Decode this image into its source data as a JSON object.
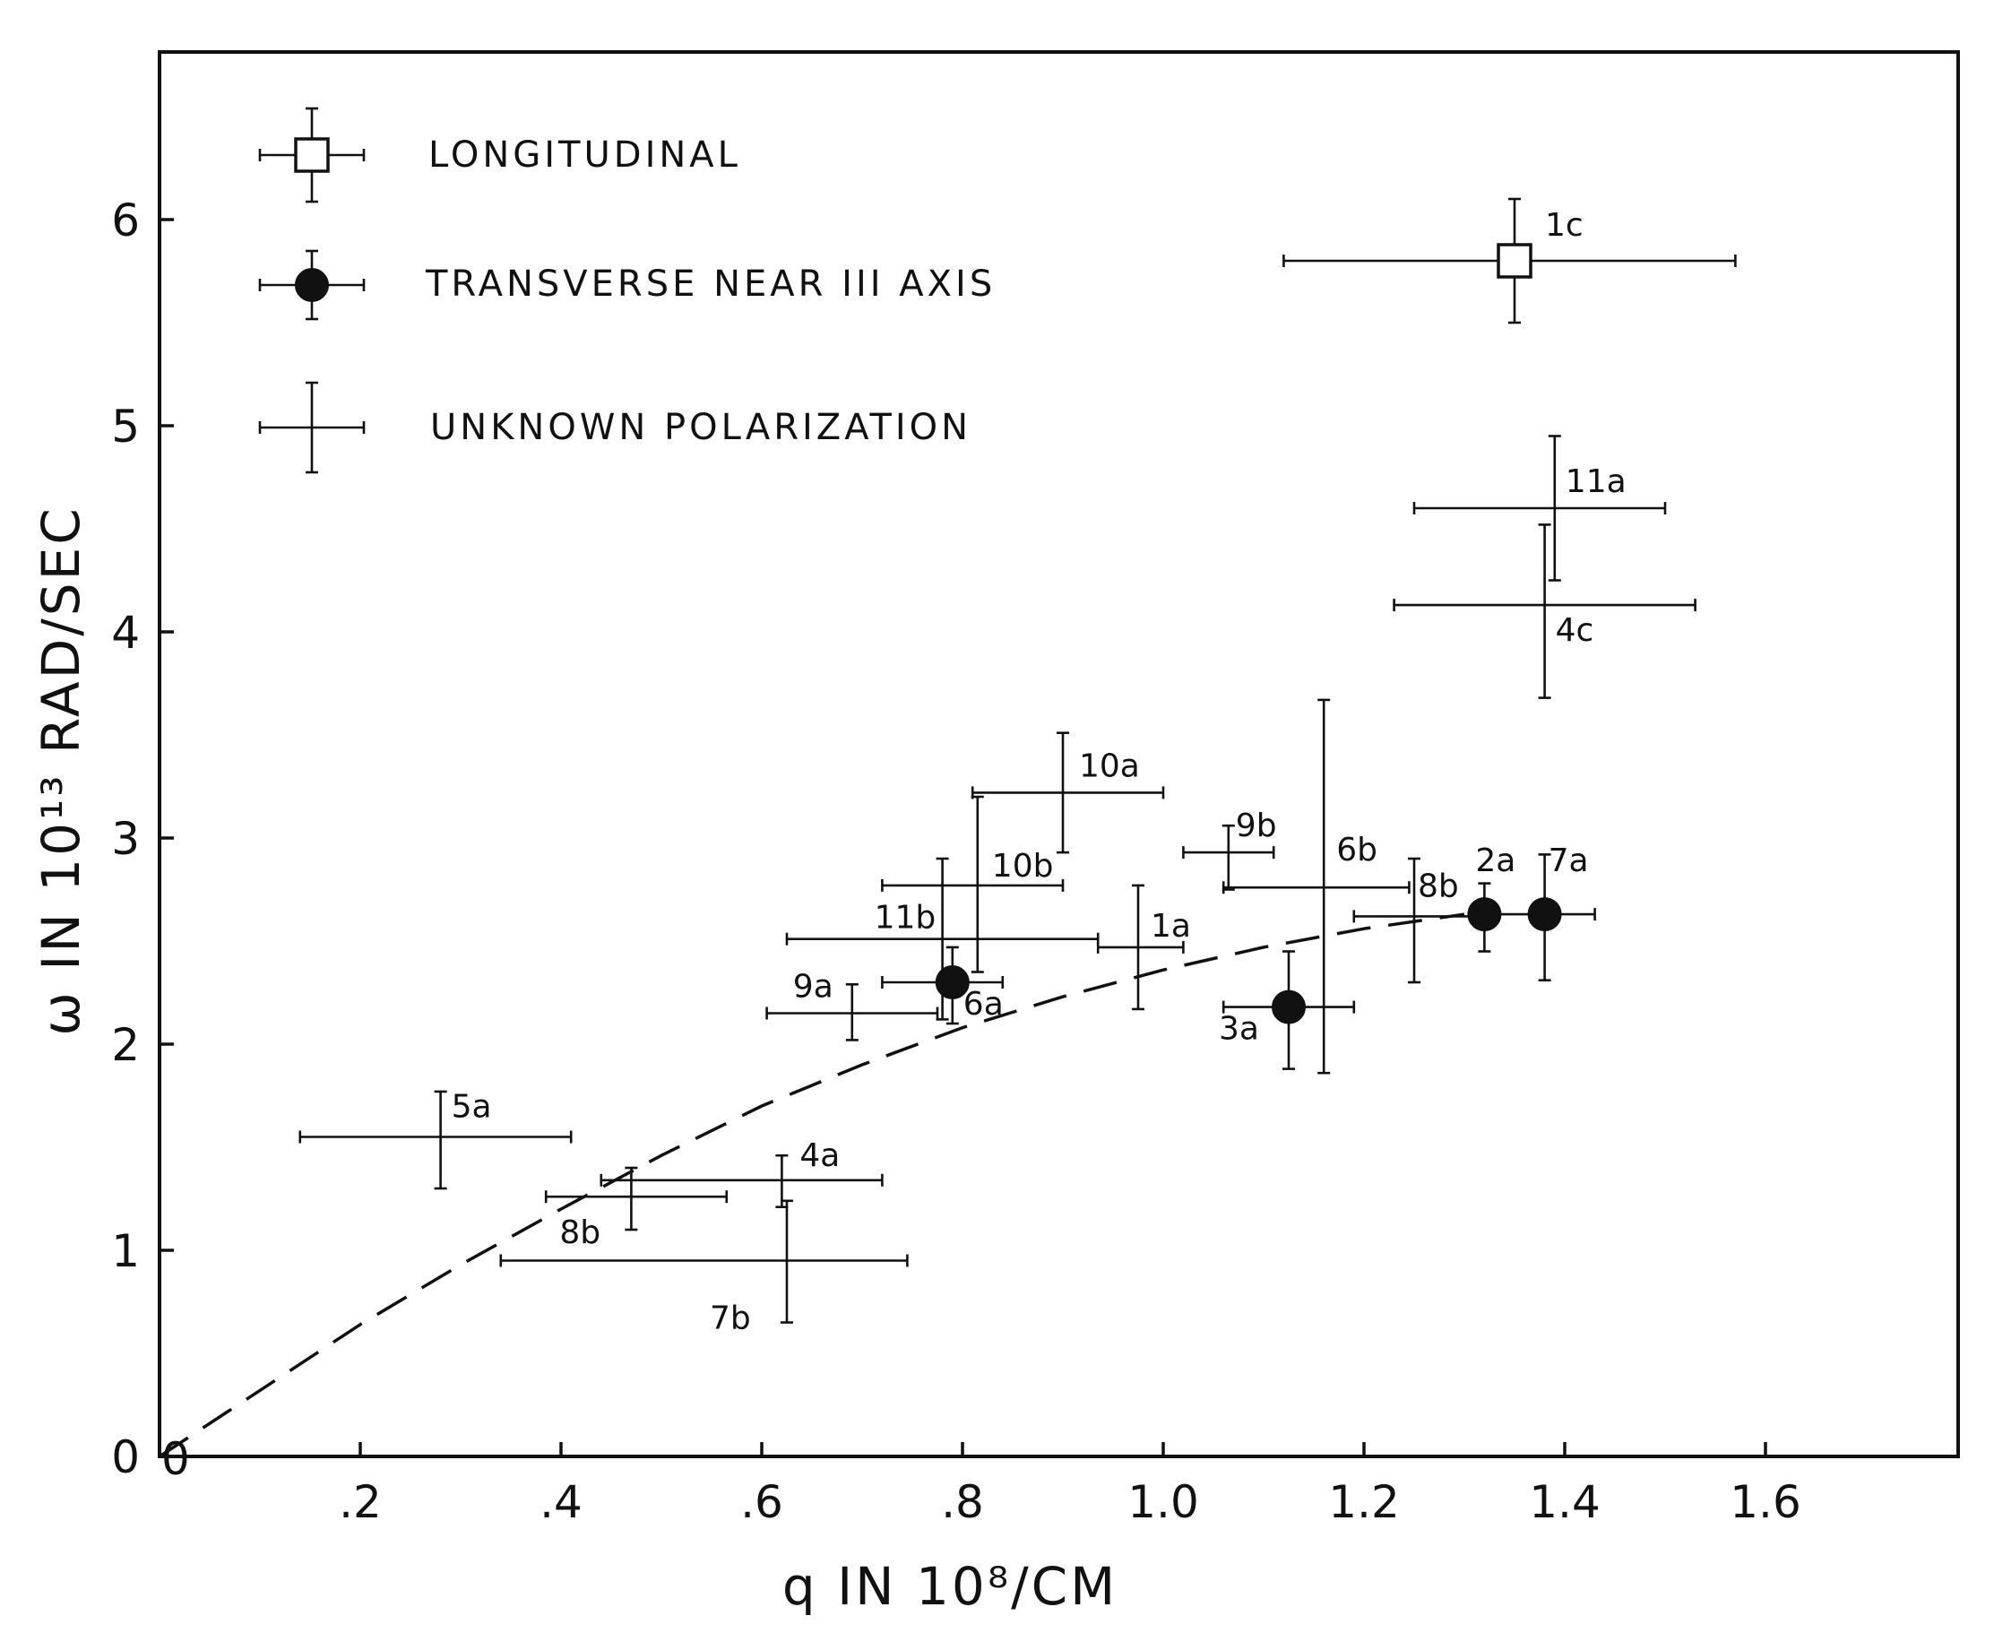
{
  "chart_data": {
    "type": "scatter",
    "title": "",
    "xlabel": "q IN 10⁸/CM",
    "ylabel": "ω IN 10¹³ RAD/SEC",
    "xlim": [
      0,
      1.78
    ],
    "ylim": [
      0,
      6.8
    ],
    "x_ticks": [
      0,
      0.2,
      0.4,
      0.6,
      0.8,
      1.0,
      1.2,
      1.4,
      1.6
    ],
    "x_tick_labels": [
      "0",
      ".2",
      ".4",
      ".6",
      ".8",
      "1.0",
      "1.2",
      "1.4",
      "1.6"
    ],
    "y_ticks": [
      0,
      1,
      2,
      3,
      4,
      5,
      6
    ],
    "y_tick_labels": [
      "0",
      "1",
      "2",
      "3",
      "4",
      "5",
      "6"
    ],
    "grid": false,
    "legend_position": "top-left",
    "legend": [
      {
        "key": "longitudinal",
        "label": "LONGITUDINAL",
        "marker": "open-square"
      },
      {
        "key": "transverse",
        "label": "TRANSVERSE NEAR III AXIS",
        "marker": "filled-circle"
      },
      {
        "key": "unknown",
        "label": "UNKNOWN POLARIZATION",
        "marker": "cross"
      }
    ],
    "points": [
      {
        "label": "1c",
        "type": "longitudinal",
        "x": 1.35,
        "y": 5.8,
        "xlo": 1.12,
        "xhi": 1.57,
        "ylo": 5.5,
        "yhi": 6.1
      },
      {
        "label": "2a",
        "type": "transverse",
        "x": 1.32,
        "y": 2.63,
        "xlo": 1.31,
        "xhi": 1.33,
        "ylo": 2.45,
        "yhi": 2.78
      },
      {
        "label": "7a",
        "type": "transverse",
        "x": 1.38,
        "y": 2.63,
        "xlo": 1.33,
        "xhi": 1.43,
        "ylo": 2.31,
        "yhi": 2.92
      },
      {
        "label": "3a",
        "type": "transverse",
        "x": 1.125,
        "y": 2.18,
        "xlo": 1.06,
        "xhi": 1.19,
        "ylo": 1.88,
        "yhi": 2.45
      },
      {
        "label": "6a",
        "type": "transverse",
        "x": 0.79,
        "y": 2.3,
        "xlo": 0.72,
        "xhi": 0.84,
        "ylo": 2.1,
        "yhi": 2.47
      },
      {
        "label": "11a",
        "type": "unknown",
        "x": 1.39,
        "y": 4.6,
        "xlo": 1.25,
        "xhi": 1.5,
        "ylo": 4.25,
        "yhi": 4.95
      },
      {
        "label": "4c",
        "type": "unknown",
        "x": 1.38,
        "y": 4.13,
        "xlo": 1.23,
        "xhi": 1.53,
        "ylo": 3.68,
        "yhi": 4.52
      },
      {
        "label": "10a",
        "type": "unknown",
        "x": 0.9,
        "y": 3.22,
        "xlo": 0.81,
        "xhi": 1.0,
        "ylo": 2.93,
        "yhi": 3.51
      },
      {
        "label": "10b",
        "type": "unknown",
        "x": 0.815,
        "y": 2.77,
        "xlo": 0.72,
        "xhi": 0.9,
        "ylo": 2.35,
        "yhi": 3.2
      },
      {
        "label": "11b",
        "type": "unknown",
        "x": 0.78,
        "y": 2.51,
        "xlo": 0.625,
        "xhi": 0.935,
        "ylo": 2.12,
        "yhi": 2.9
      },
      {
        "label": "1a",
        "type": "unknown",
        "x": 0.975,
        "y": 2.47,
        "xlo": 0.935,
        "xhi": 1.02,
        "ylo": 2.17,
        "yhi": 2.77
      },
      {
        "label": "9b",
        "type": "unknown",
        "x": 1.065,
        "y": 2.93,
        "xlo": 1.02,
        "xhi": 1.11,
        "ylo": 2.75,
        "yhi": 3.06
      },
      {
        "label": "6b",
        "type": "unknown",
        "x": 1.16,
        "y": 2.76,
        "xlo": 1.06,
        "xhi": 1.245,
        "ylo": 1.86,
        "yhi": 3.67
      },
      {
        "label": "8b",
        "type": "unknown",
        "x": 1.25,
        "y": 2.62,
        "xlo": 1.19,
        "xhi": 1.31,
        "ylo": 2.3,
        "yhi": 2.9
      },
      {
        "label": "9a",
        "type": "unknown",
        "x": 0.69,
        "y": 2.15,
        "xlo": 0.605,
        "xhi": 0.775,
        "ylo": 2.02,
        "yhi": 2.29
      },
      {
        "label": "5a",
        "type": "unknown",
        "x": 0.28,
        "y": 1.55,
        "xlo": 0.14,
        "xhi": 0.41,
        "ylo": 1.3,
        "yhi": 1.77
      },
      {
        "label": "4a",
        "type": "unknown",
        "x": 0.62,
        "y": 1.34,
        "xlo": 0.44,
        "xhi": 0.72,
        "ylo": 1.21,
        "yhi": 1.46
      },
      {
        "label": "8b",
        "type": "unknown",
        "x": 0.47,
        "y": 1.26,
        "xlo": 0.385,
        "xhi": 0.565,
        "ylo": 1.1,
        "yhi": 1.4
      },
      {
        "label": "7b",
        "type": "unknown",
        "x": 0.625,
        "y": 0.95,
        "xlo": 0.34,
        "xhi": 0.745,
        "ylo": 0.65,
        "yhi": 1.24
      }
    ],
    "trend_line": {
      "style": "dashed",
      "x": [
        0,
        0.1,
        0.2,
        0.3,
        0.4,
        0.5,
        0.6,
        0.7,
        0.8,
        0.9,
        1.0,
        1.1,
        1.2,
        1.3
      ],
      "y": [
        0,
        0.32,
        0.64,
        0.93,
        1.2,
        1.46,
        1.7,
        1.9,
        2.08,
        2.23,
        2.36,
        2.47,
        2.56,
        2.63
      ]
    }
  }
}
